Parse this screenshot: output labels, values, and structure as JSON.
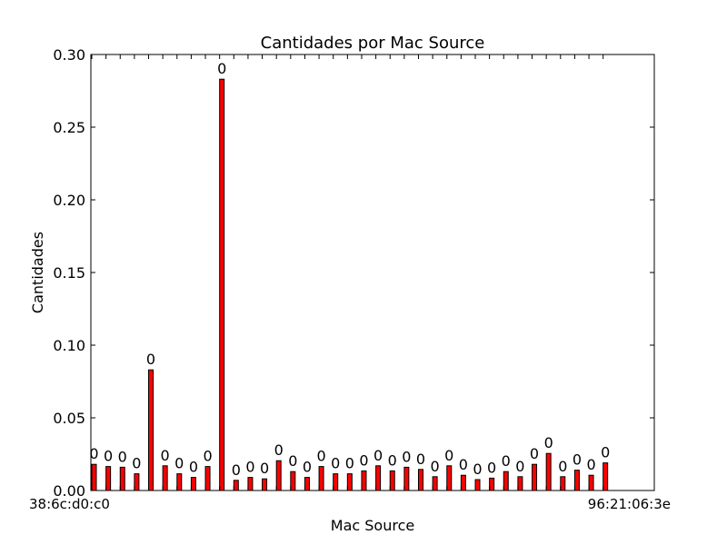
{
  "chart_data": {
    "type": "bar",
    "title": "Cantidades por Mac Source",
    "xlabel": "Mac Source",
    "ylabel": "Cantidades",
    "ylim": [
      0,
      0.3
    ],
    "y_ticks": [
      "0.00",
      "0.05",
      "0.10",
      "0.15",
      "0.20",
      "0.25",
      "0.30"
    ],
    "values": [
      0.018,
      0.0165,
      0.016,
      0.0115,
      0.083,
      0.017,
      0.0115,
      0.009,
      0.0165,
      0.283,
      0.007,
      0.009,
      0.008,
      0.0205,
      0.013,
      0.009,
      0.0165,
      0.0115,
      0.0115,
      0.0135,
      0.017,
      0.0135,
      0.016,
      0.0145,
      0.0095,
      0.017,
      0.0105,
      0.0075,
      0.0085,
      0.013,
      0.0095,
      0.018,
      0.0255,
      0.0095,
      0.014,
      0.0105,
      0.019
    ],
    "bar_labels": [
      "0",
      "0",
      "0",
      "0",
      "0",
      "0",
      "0",
      "0",
      "0",
      "0",
      "0",
      "0",
      "0",
      "0",
      "0",
      "0",
      "0",
      "0",
      "0",
      "0",
      "0",
      "0",
      "0",
      "0",
      "0",
      "0",
      "0",
      "0",
      "0",
      "0",
      "0",
      "0",
      "0",
      "0",
      "0",
      "0",
      "0"
    ],
    "tick_label_left": "38:6c:d0:c0",
    "tick_label_right": "96:21:06:3e",
    "grid": false,
    "colors": {
      "bar": "#ff0000",
      "edge": "#000000"
    }
  }
}
